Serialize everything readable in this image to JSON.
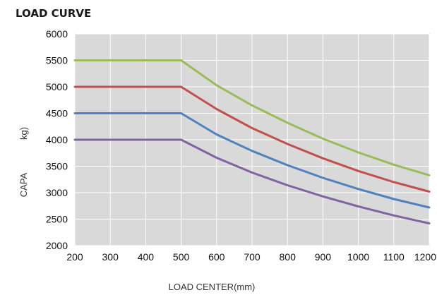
{
  "chart_data": {
    "type": "line",
    "title": "LOAD CURVE",
    "xlabel": "LOAD CENTER(mm)",
    "ylabel_lines": [
      "kg)",
      "CAPA"
    ],
    "xlim": [
      200,
      1200
    ],
    "ylim": [
      2000,
      6000
    ],
    "xticks": [
      "200",
      "300",
      "400",
      "500",
      "600",
      "700",
      "800",
      "900",
      "1000",
      "1100",
      "1200"
    ],
    "yticks": [
      "2000",
      "2500",
      "3000",
      "3500",
      "4000",
      "4500",
      "5000",
      "5500",
      "6000"
    ],
    "grid": true,
    "x": [
      200,
      300,
      400,
      500,
      600,
      700,
      800,
      900,
      1000,
      1100,
      1200
    ],
    "series": [
      {
        "color": "#9bbb59",
        "values": [
          5500,
          5500,
          5500,
          5500,
          5030,
          4650,
          4320,
          4020,
          3760,
          3530,
          3330
        ]
      },
      {
        "color": "#c0504d",
        "values": [
          5000,
          5000,
          5000,
          5000,
          4580,
          4220,
          3920,
          3650,
          3410,
          3200,
          3020
        ]
      },
      {
        "color": "#4f81bd",
        "values": [
          4500,
          4500,
          4500,
          4500,
          4100,
          3790,
          3520,
          3280,
          3070,
          2880,
          2720
        ]
      },
      {
        "color": "#8064a2",
        "values": [
          4000,
          4000,
          4000,
          4000,
          3660,
          3380,
          3140,
          2930,
          2740,
          2570,
          2420
        ]
      }
    ]
  }
}
